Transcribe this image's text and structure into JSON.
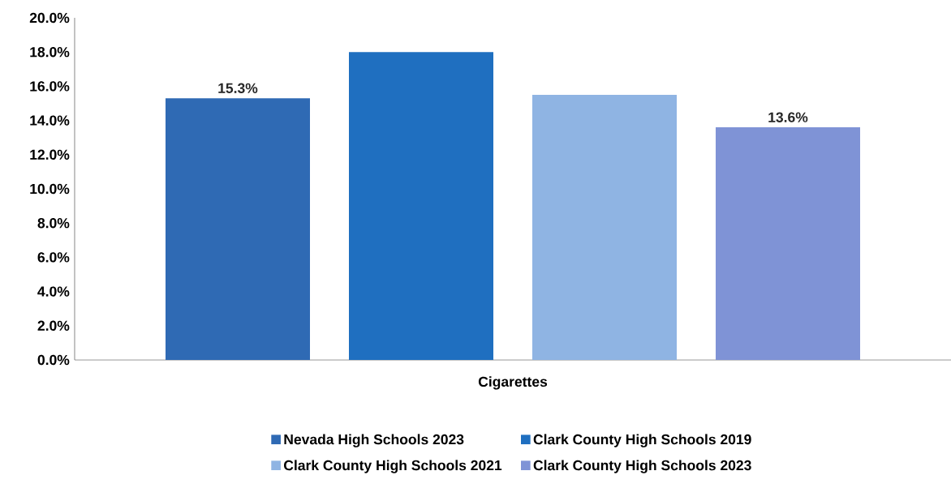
{
  "chart_data": {
    "type": "bar",
    "categories": [
      "Cigarettes"
    ],
    "series": [
      {
        "name": "Nevada High Schools 2023",
        "color": "#2f6ab4",
        "values": [
          15.3
        ],
        "value_labels": [
          "15.3%"
        ]
      },
      {
        "name": "Clark County High Schools 2019",
        "color": "#1f6fc0",
        "values": [
          18.0
        ],
        "value_labels": [
          null
        ]
      },
      {
        "name": "Clark County High Schools 2021",
        "color": "#8fb4e3",
        "values": [
          15.5
        ],
        "value_labels": [
          null
        ]
      },
      {
        "name": "Clark County High Schools 2023",
        "color": "#7f93d6",
        "values": [
          13.6
        ],
        "value_labels": [
          "13.6%"
        ]
      }
    ],
    "ylim": [
      0,
      20
    ],
    "yticks": [
      {
        "value": 0,
        "label": "0.0%"
      },
      {
        "value": 2,
        "label": "2.0%"
      },
      {
        "value": 4,
        "label": "4.0%"
      },
      {
        "value": 6,
        "label": "6.0%"
      },
      {
        "value": 8,
        "label": "8.0%"
      },
      {
        "value": 10,
        "label": "10.0%"
      },
      {
        "value": 12,
        "label": "12.0%"
      },
      {
        "value": 14,
        "label": "14.0%"
      },
      {
        "value": 16,
        "label": "16.0%"
      },
      {
        "value": 18,
        "label": "18.0%"
      },
      {
        "value": 20,
        "label": "20.0%"
      }
    ],
    "legend": "bottom"
  }
}
